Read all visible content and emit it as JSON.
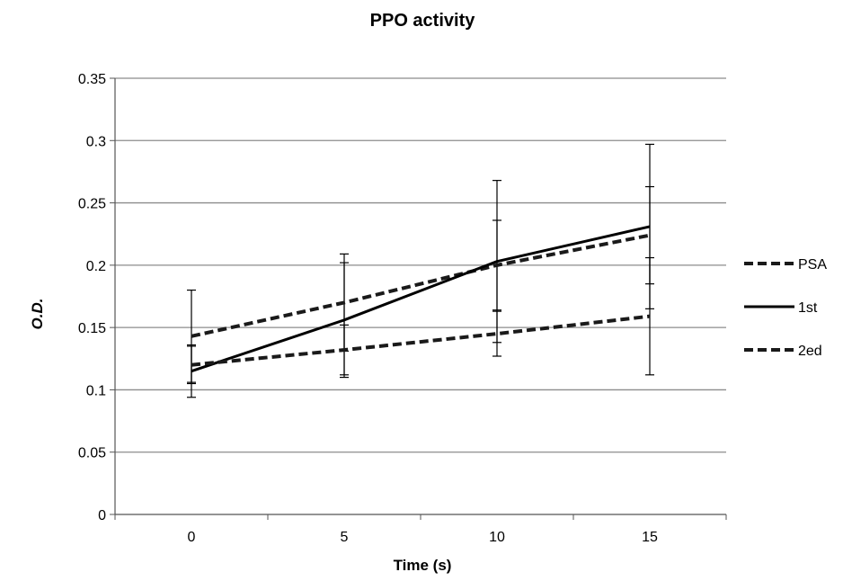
{
  "chart_data": {
    "type": "line",
    "title": "PPO activity",
    "xlabel": "Time (s)",
    "ylabel": "O.D.",
    "categories": [
      "0",
      "5",
      "10",
      "15"
    ],
    "ylim": [
      0,
      0.35
    ],
    "yticks": [
      "0",
      "0.05",
      "0.1",
      "0.15",
      "0.2",
      "0.25",
      "0.3",
      "0.35"
    ],
    "grid": "horizontal",
    "legend_position": "right",
    "series": [
      {
        "name": "PSA",
        "style": "dashed",
        "color": "#1a1a1a",
        "values": [
          0.143,
          0.17,
          0.2,
          0.224
        ],
        "error": [
          0.037,
          0.039,
          0.036,
          0.039
        ]
      },
      {
        "name": "1st",
        "style": "solid",
        "color": "#000000",
        "values": [
          0.115,
          0.156,
          0.203,
          0.231
        ],
        "error": [
          0.021,
          0.046,
          0.065,
          0.066
        ]
      },
      {
        "name": "2ed",
        "style": "dashed",
        "color": "#1a1a1a",
        "values": [
          0.12,
          0.132,
          0.145,
          0.159
        ],
        "error": [
          0.015,
          0.02,
          0.018,
          0.047
        ]
      }
    ]
  }
}
